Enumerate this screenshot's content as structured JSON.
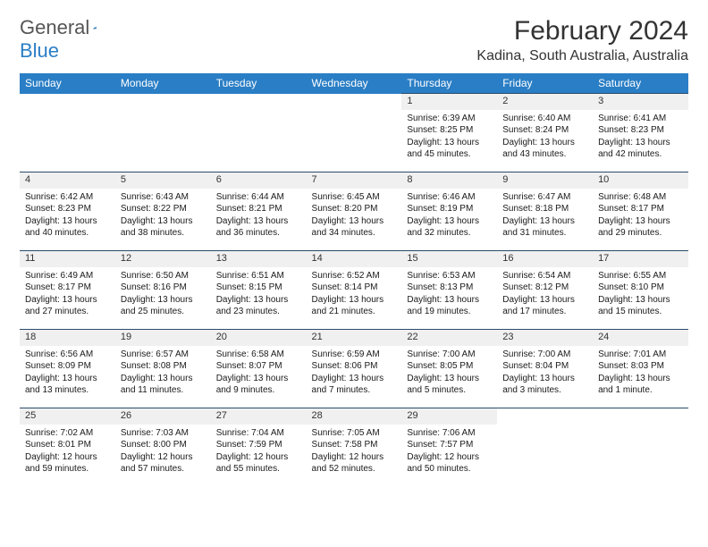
{
  "logo": {
    "text1": "General",
    "text2": "Blue"
  },
  "title": "February 2024",
  "location": "Kadina, South Australia, Australia",
  "colors": {
    "header_bg": "#2a7ec5",
    "header_text": "#ffffff",
    "daynum_bg": "#f0f0f0",
    "border": "#2a4a6a",
    "page_bg": "#ffffff",
    "text": "#1a1a1a"
  },
  "typography": {
    "title_fontsize": 30,
    "location_fontsize": 16,
    "header_fontsize": 12,
    "daynum_fontsize": 11,
    "cell_fontsize": 10
  },
  "weekdays": [
    "Sunday",
    "Monday",
    "Tuesday",
    "Wednesday",
    "Thursday",
    "Friday",
    "Saturday"
  ],
  "weeks": [
    [
      null,
      null,
      null,
      null,
      {
        "n": "1",
        "sr": "Sunrise: 6:39 AM",
        "ss": "Sunset: 8:25 PM",
        "dl": "Daylight: 13 hours and 45 minutes."
      },
      {
        "n": "2",
        "sr": "Sunrise: 6:40 AM",
        "ss": "Sunset: 8:24 PM",
        "dl": "Daylight: 13 hours and 43 minutes."
      },
      {
        "n": "3",
        "sr": "Sunrise: 6:41 AM",
        "ss": "Sunset: 8:23 PM",
        "dl": "Daylight: 13 hours and 42 minutes."
      }
    ],
    [
      {
        "n": "4",
        "sr": "Sunrise: 6:42 AM",
        "ss": "Sunset: 8:23 PM",
        "dl": "Daylight: 13 hours and 40 minutes."
      },
      {
        "n": "5",
        "sr": "Sunrise: 6:43 AM",
        "ss": "Sunset: 8:22 PM",
        "dl": "Daylight: 13 hours and 38 minutes."
      },
      {
        "n": "6",
        "sr": "Sunrise: 6:44 AM",
        "ss": "Sunset: 8:21 PM",
        "dl": "Daylight: 13 hours and 36 minutes."
      },
      {
        "n": "7",
        "sr": "Sunrise: 6:45 AM",
        "ss": "Sunset: 8:20 PM",
        "dl": "Daylight: 13 hours and 34 minutes."
      },
      {
        "n": "8",
        "sr": "Sunrise: 6:46 AM",
        "ss": "Sunset: 8:19 PM",
        "dl": "Daylight: 13 hours and 32 minutes."
      },
      {
        "n": "9",
        "sr": "Sunrise: 6:47 AM",
        "ss": "Sunset: 8:18 PM",
        "dl": "Daylight: 13 hours and 31 minutes."
      },
      {
        "n": "10",
        "sr": "Sunrise: 6:48 AM",
        "ss": "Sunset: 8:17 PM",
        "dl": "Daylight: 13 hours and 29 minutes."
      }
    ],
    [
      {
        "n": "11",
        "sr": "Sunrise: 6:49 AM",
        "ss": "Sunset: 8:17 PM",
        "dl": "Daylight: 13 hours and 27 minutes."
      },
      {
        "n": "12",
        "sr": "Sunrise: 6:50 AM",
        "ss": "Sunset: 8:16 PM",
        "dl": "Daylight: 13 hours and 25 minutes."
      },
      {
        "n": "13",
        "sr": "Sunrise: 6:51 AM",
        "ss": "Sunset: 8:15 PM",
        "dl": "Daylight: 13 hours and 23 minutes."
      },
      {
        "n": "14",
        "sr": "Sunrise: 6:52 AM",
        "ss": "Sunset: 8:14 PM",
        "dl": "Daylight: 13 hours and 21 minutes."
      },
      {
        "n": "15",
        "sr": "Sunrise: 6:53 AM",
        "ss": "Sunset: 8:13 PM",
        "dl": "Daylight: 13 hours and 19 minutes."
      },
      {
        "n": "16",
        "sr": "Sunrise: 6:54 AM",
        "ss": "Sunset: 8:12 PM",
        "dl": "Daylight: 13 hours and 17 minutes."
      },
      {
        "n": "17",
        "sr": "Sunrise: 6:55 AM",
        "ss": "Sunset: 8:10 PM",
        "dl": "Daylight: 13 hours and 15 minutes."
      }
    ],
    [
      {
        "n": "18",
        "sr": "Sunrise: 6:56 AM",
        "ss": "Sunset: 8:09 PM",
        "dl": "Daylight: 13 hours and 13 minutes."
      },
      {
        "n": "19",
        "sr": "Sunrise: 6:57 AM",
        "ss": "Sunset: 8:08 PM",
        "dl": "Daylight: 13 hours and 11 minutes."
      },
      {
        "n": "20",
        "sr": "Sunrise: 6:58 AM",
        "ss": "Sunset: 8:07 PM",
        "dl": "Daylight: 13 hours and 9 minutes."
      },
      {
        "n": "21",
        "sr": "Sunrise: 6:59 AM",
        "ss": "Sunset: 8:06 PM",
        "dl": "Daylight: 13 hours and 7 minutes."
      },
      {
        "n": "22",
        "sr": "Sunrise: 7:00 AM",
        "ss": "Sunset: 8:05 PM",
        "dl": "Daylight: 13 hours and 5 minutes."
      },
      {
        "n": "23",
        "sr": "Sunrise: 7:00 AM",
        "ss": "Sunset: 8:04 PM",
        "dl": "Daylight: 13 hours and 3 minutes."
      },
      {
        "n": "24",
        "sr": "Sunrise: 7:01 AM",
        "ss": "Sunset: 8:03 PM",
        "dl": "Daylight: 13 hours and 1 minute."
      }
    ],
    [
      {
        "n": "25",
        "sr": "Sunrise: 7:02 AM",
        "ss": "Sunset: 8:01 PM",
        "dl": "Daylight: 12 hours and 59 minutes."
      },
      {
        "n": "26",
        "sr": "Sunrise: 7:03 AM",
        "ss": "Sunset: 8:00 PM",
        "dl": "Daylight: 12 hours and 57 minutes."
      },
      {
        "n": "27",
        "sr": "Sunrise: 7:04 AM",
        "ss": "Sunset: 7:59 PM",
        "dl": "Daylight: 12 hours and 55 minutes."
      },
      {
        "n": "28",
        "sr": "Sunrise: 7:05 AM",
        "ss": "Sunset: 7:58 PM",
        "dl": "Daylight: 12 hours and 52 minutes."
      },
      {
        "n": "29",
        "sr": "Sunrise: 7:06 AM",
        "ss": "Sunset: 7:57 PM",
        "dl": "Daylight: 12 hours and 50 minutes."
      },
      null,
      null
    ]
  ]
}
